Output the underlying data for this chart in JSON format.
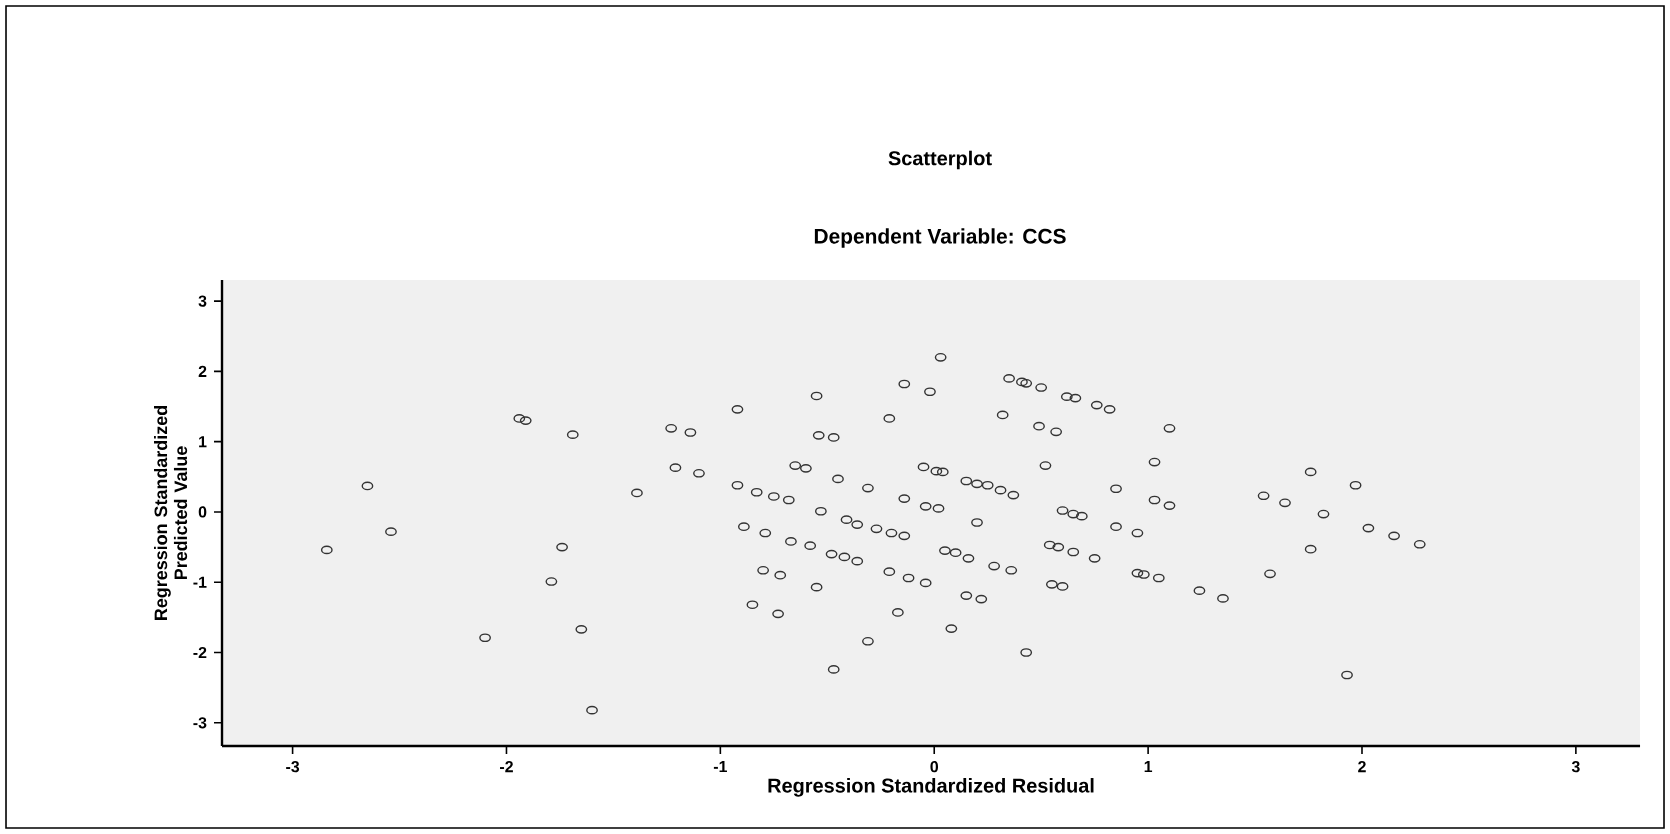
{
  "chart_data": {
    "type": "scatter",
    "title": "Scatterplot",
    "subtitle": "Dependent Variable: CCS",
    "xlabel": "Regression Standardized Residual",
    "ylabel": "Regression Standardized Predicted Value",
    "marker": "circle",
    "grid": false,
    "xlim": [
      -3.33,
      3.3
    ],
    "ylim": [
      -3.33,
      3.3
    ],
    "xticks": [
      -3,
      -2,
      -1,
      0,
      1,
      2,
      3
    ],
    "yticks": [
      -3,
      -2,
      -1,
      0,
      1,
      2,
      3
    ],
    "series": [
      {
        "color": "#333333",
        "x": [
          -1.94,
          -1.91,
          -1.69,
          -1.23,
          -1.21,
          -1.39,
          -2.65,
          -2.54,
          -2.84,
          -1.74,
          -1.79,
          -2.1,
          -1.65,
          -1.6,
          1.1,
          1.03,
          1.03,
          1.1,
          0.95,
          0.98,
          0.95,
          1.05,
          1.24,
          1.35,
          1.54,
          1.64,
          1.76,
          1.97,
          1.82,
          2.03,
          2.15,
          2.27,
          1.76,
          1.57,
          1.93,
          0.03,
          -0.14,
          -0.02,
          -0.55,
          -0.92,
          -1.14,
          0.35,
          0.41,
          0.43,
          0.5,
          0.62,
          0.66,
          0.76,
          0.82,
          0.32,
          -0.21,
          0.49,
          0.57,
          -0.54,
          -0.47,
          -1.1,
          -0.92,
          -0.83,
          -0.75,
          -0.68,
          -0.65,
          -0.6,
          -0.45,
          -0.31,
          -0.14,
          -0.05,
          0.01,
          0.04,
          0.15,
          0.2,
          0.25,
          0.31,
          0.37,
          0.52,
          0.85,
          -0.53,
          -0.41,
          -0.36,
          -0.27,
          -0.2,
          -0.14,
          -0.04,
          0.02,
          0.2,
          -0.89,
          -0.79,
          -0.67,
          -0.58,
          -0.48,
          -0.42,
          -0.36,
          0.05,
          0.1,
          0.16,
          0.28,
          0.36,
          -0.21,
          -0.12,
          -0.04,
          -0.8,
          -0.72,
          -0.55,
          -0.85,
          -0.73,
          -0.17,
          0.15,
          0.22,
          0.08,
          -0.31,
          -0.47,
          0.43,
          0.6,
          0.65,
          0.69,
          0.85,
          0.54,
          0.58,
          0.65,
          0.75,
          0.55,
          0.6
        ],
        "values": [
          1.33,
          1.3,
          1.1,
          1.19,
          0.63,
          0.27,
          0.37,
          -0.28,
          -0.54,
          -0.5,
          -0.99,
          -1.79,
          -1.67,
          -2.82,
          1.19,
          0.71,
          0.17,
          0.09,
          -0.3,
          -0.89,
          -0.87,
          -0.94,
          -1.12,
          -1.23,
          0.23,
          0.13,
          0.57,
          0.38,
          -0.03,
          -0.23,
          -0.34,
          -0.46,
          -0.53,
          -0.88,
          -2.32,
          2.2,
          1.82,
          1.71,
          1.65,
          1.46,
          1.13,
          1.9,
          1.85,
          1.83,
          1.77,
          1.64,
          1.62,
          1.52,
          1.46,
          1.38,
          1.33,
          1.22,
          1.14,
          1.09,
          1.06,
          0.55,
          0.38,
          0.28,
          0.22,
          0.17,
          0.66,
          0.62,
          0.47,
          0.34,
          0.19,
          0.64,
          0.58,
          0.57,
          0.44,
          0.4,
          0.38,
          0.31,
          0.24,
          0.66,
          0.33,
          0.01,
          -0.11,
          -0.18,
          -0.24,
          -0.3,
          -0.34,
          0.08,
          0.05,
          -0.15,
          -0.21,
          -0.3,
          -0.42,
          -0.48,
          -0.6,
          -0.64,
          -0.7,
          -0.55,
          -0.58,
          -0.66,
          -0.77,
          -0.83,
          -0.85,
          -0.94,
          -1.01,
          -0.83,
          -0.9,
          -1.07,
          -1.32,
          -1.45,
          -1.43,
          -1.19,
          -1.24,
          -1.66,
          -1.84,
          -2.24,
          -2.0,
          0.02,
          -0.03,
          -0.06,
          -0.21,
          -0.47,
          -0.5,
          -0.57,
          -0.66,
          -1.03,
          -1.06
        ]
      }
    ]
  }
}
